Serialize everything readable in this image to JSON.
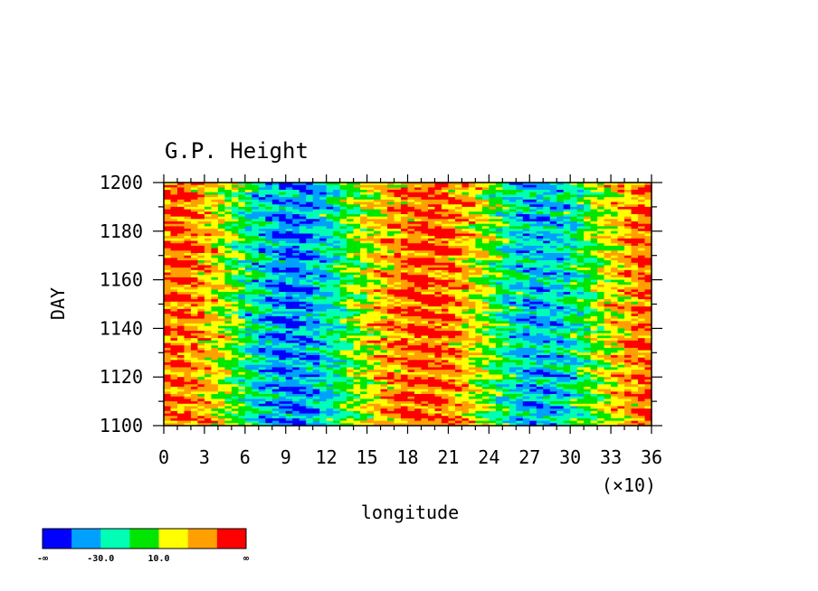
{
  "chart_data": {
    "type": "heatmap",
    "title": "G.P. Height",
    "xlabel": "longitude",
    "ylabel": "DAY",
    "x_multiplier": "(×10)",
    "xlim": [
      0,
      36
    ],
    "ylim": [
      1100,
      1200
    ],
    "x_ticks": [
      "0",
      "3",
      "6",
      "9",
      "12",
      "15",
      "18",
      "21",
      "24",
      "27",
      "30",
      "33",
      "36"
    ],
    "y_ticks": [
      "1100",
      "1120",
      "1140",
      "1160",
      "1180",
      "1200"
    ],
    "colorbar": {
      "colors": [
        "#0000ff",
        "#00a0ff",
        "#00ffb4",
        "#00e600",
        "#ffff00",
        "#ffa000",
        "#ff0000"
      ],
      "labels": [
        "-∞",
        "-30.0",
        "10.0",
        "∞"
      ]
    }
  }
}
